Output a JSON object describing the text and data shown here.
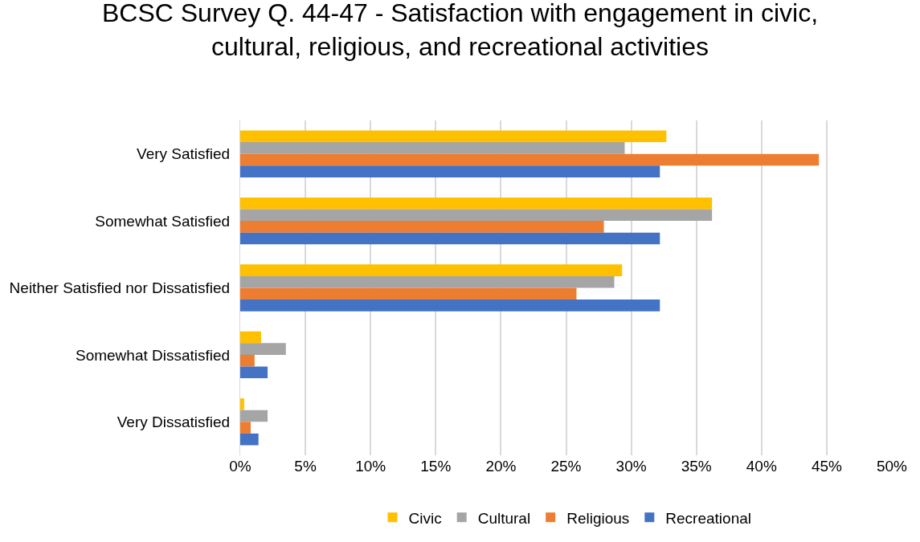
{
  "chart_data": {
    "type": "bar",
    "orientation": "horizontal",
    "title": "BCSC Survey Q. 44-47 - Satisfaction with engagement in civic, cultural, religious, and recreational activities",
    "categories": [
      "Very Satisfied",
      "Somewhat Satisfied",
      "Neither Satisfied nor Dissatisfied",
      "Somewhat Dissatisfied",
      "Very Dissatisfied"
    ],
    "series": [
      {
        "name": "Civic",
        "color": "#ffc000",
        "values": [
          32.7,
          36.2,
          29.3,
          1.6,
          0.3
        ]
      },
      {
        "name": "Cultural",
        "color": "#a5a5a5",
        "values": [
          29.5,
          36.2,
          28.7,
          3.5,
          2.1
        ]
      },
      {
        "name": "Religious",
        "color": "#ed7d31",
        "values": [
          44.4,
          27.9,
          25.8,
          1.1,
          0.8
        ]
      },
      {
        "name": "Recreational",
        "color": "#4472c4",
        "values": [
          32.2,
          32.2,
          32.2,
          2.1,
          1.4
        ]
      }
    ],
    "xlim": [
      0,
      50
    ],
    "xticks": [
      {
        "value": 0,
        "label": "0%"
      },
      {
        "value": 5,
        "label": "5%"
      },
      {
        "value": 10,
        "label": "10%"
      },
      {
        "value": 15,
        "label": "15%"
      },
      {
        "value": 20,
        "label": "20%"
      },
      {
        "value": 25,
        "label": "25%"
      },
      {
        "value": 30,
        "label": "30%"
      },
      {
        "value": 35,
        "label": "35%"
      },
      {
        "value": 40,
        "label": "40%"
      },
      {
        "value": 45,
        "label": "45%"
      },
      {
        "value": 50,
        "label": "50%"
      }
    ],
    "grid": "x",
    "legend": "bottom"
  }
}
